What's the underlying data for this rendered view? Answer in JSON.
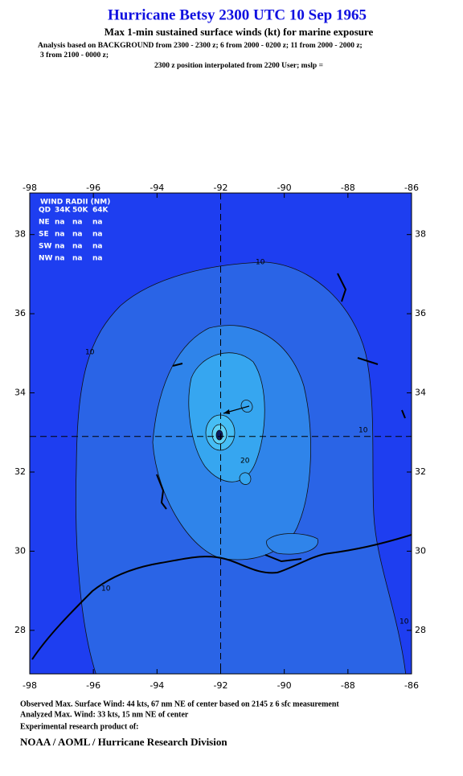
{
  "header": {
    "title": "Hurricane Betsy 2300 UTC 10 Sep 1965",
    "subtitle": "Max 1-min sustained surface winds (kt) for marine exposure",
    "analysis_lines": [
      "Analysis based on  BACKGROUND from 2300 - 2300 z;  6 from 2000 - 0200 z;  11 from 2000 - 2000 z;",
      "3 from 2100 - 0000 z;"
    ],
    "position_note": "2300 z position interpolated from 2200 User; mslp ="
  },
  "map": {
    "xlim": [
      -98,
      -86
    ],
    "ylim": [
      26.9,
      39.05
    ],
    "xticks": [
      -98,
      -96,
      -94,
      -92,
      -90,
      -88,
      -86
    ],
    "yticks": [
      28,
      30,
      32,
      34,
      36,
      38
    ],
    "center": {
      "lon": -92,
      "lat": 32.9
    },
    "contour_labels": [
      "10",
      "10",
      "10",
      "10",
      "10",
      "20"
    ],
    "wind_radii": {
      "title": "WIND RADII (NM)",
      "header": [
        "QD",
        "34K",
        "50K",
        "64K"
      ],
      "rows": [
        [
          "NE",
          "na",
          "na",
          "na"
        ],
        [
          "SE",
          "na",
          "na",
          "na"
        ],
        [
          "SW",
          "na",
          "na",
          "na"
        ],
        [
          "NW",
          "na",
          "na",
          "na"
        ]
      ]
    }
  },
  "footer": {
    "lines": [
      "Observed Max. Surface Wind: 44 kts, 67 nm NE of center based on 2145 z 6 sfc measurement",
      "Analyzed Max. Wind: 33 kts, 15 nm NE of center",
      "Experimental research product of:"
    ],
    "organization": "NOAA / AOML / Hurricane Research Division"
  }
}
